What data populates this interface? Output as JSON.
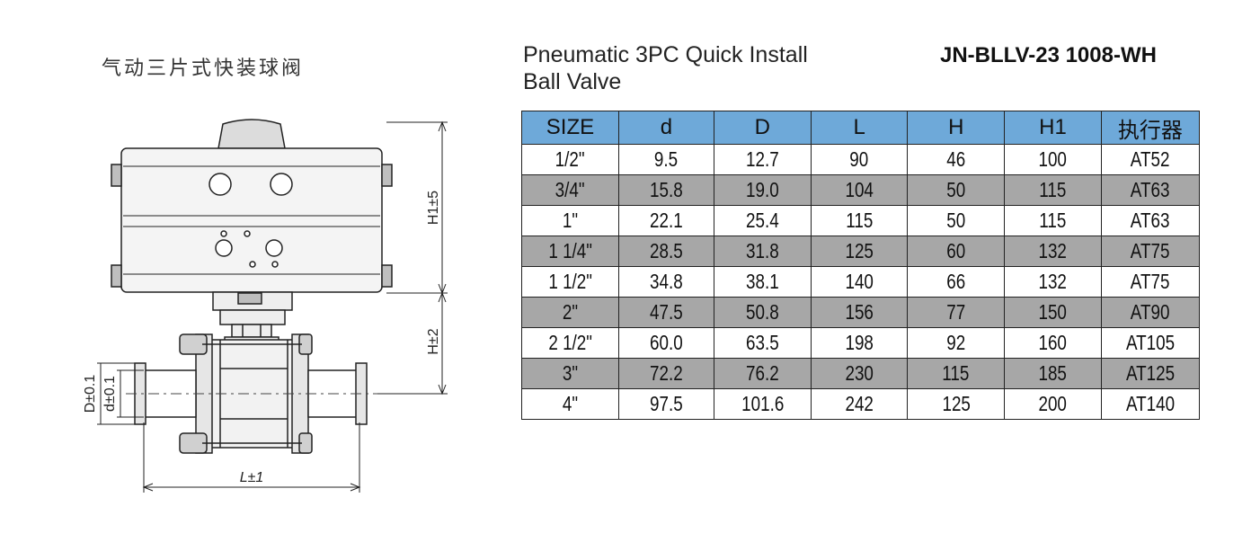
{
  "title_cn": "气动三片式快装球阀",
  "title_en_line1": "Pneumatic 3PC Quick Install",
  "title_en_line2": "Ball Valve",
  "model": "JN-BLLV-23 1008-WH",
  "dimension_labels": {
    "h1": "H1±5",
    "h": "H±2",
    "d_outer": "D±0.1",
    "d_inner": "d±0.1",
    "l": "L±1"
  },
  "table": {
    "headers": [
      "SIZE",
      "d",
      "D",
      "L",
      "H",
      "H1",
      "执行器"
    ],
    "rows": [
      [
        "1/2\"",
        "9.5",
        "12.7",
        "90",
        "46",
        "100",
        "AT52"
      ],
      [
        "3/4\"",
        "15.8",
        "19.0",
        "104",
        "50",
        "115",
        "AT63"
      ],
      [
        "1\"",
        "22.1",
        "25.4",
        "115",
        "50",
        "115",
        "AT63"
      ],
      [
        "1 1/4\"",
        "28.5",
        "31.8",
        "125",
        "60",
        "132",
        "AT75"
      ],
      [
        "1 1/2\"",
        "34.8",
        "38.1",
        "140",
        "66",
        "132",
        "AT75"
      ],
      [
        "2\"",
        "47.5",
        "50.8",
        "156",
        "77",
        "150",
        "AT90"
      ],
      [
        "2 1/2\"",
        "60.0",
        "63.5",
        "198",
        "92",
        "160",
        "AT105"
      ],
      [
        "3\"",
        "72.2",
        "76.2",
        "230",
        "115",
        "185",
        "AT125"
      ],
      [
        "4\"",
        "97.5",
        "101.6",
        "242",
        "125",
        "200",
        "AT140"
      ]
    ]
  },
  "colors": {
    "header_bg": "#6ea9d9",
    "grey_row_bg": "#a7a7a7"
  }
}
